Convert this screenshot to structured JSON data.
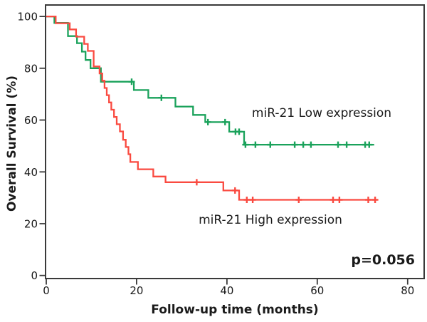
{
  "chart_data": {
    "type": "line",
    "subtype": "kaplan_meier_step",
    "title": "",
    "xlabel": "Follow-up time (months)",
    "ylabel": "Overall Survival (%)",
    "xlim": [
      0,
      84
    ],
    "ylim": [
      0,
      100
    ],
    "xticks": [
      0,
      20,
      40,
      60,
      80
    ],
    "yticks": [
      0,
      20,
      40,
      60,
      80,
      100
    ],
    "grid": false,
    "legend_position": "inline annotations on plot",
    "p_value": "p=0.056",
    "frame_color": "#3a3a3a",
    "text_color": "#1a1a1a",
    "series": [
      {
        "key": "low",
        "name": "miR-21 Low expression",
        "color": "#1aa25b",
        "steps": [
          [
            0,
            100
          ],
          [
            1.8,
            97.5
          ],
          [
            4.8,
            92.4
          ],
          [
            6.8,
            89.7
          ],
          [
            7.9,
            86.4
          ],
          [
            8.7,
            83.2
          ],
          [
            9.8,
            80
          ],
          [
            12.1,
            74.8
          ],
          [
            19.4,
            71.6
          ],
          [
            22.6,
            68.6
          ],
          [
            28.6,
            65.2
          ],
          [
            32.5,
            62
          ],
          [
            35.2,
            59.2
          ],
          [
            40.5,
            55.5
          ],
          [
            43.8,
            50.5
          ],
          [
            72.6,
            50.5
          ]
        ],
        "censors": [
          [
            18.9,
            74.8
          ],
          [
            25.5,
            68.6
          ],
          [
            35.8,
            59.2
          ],
          [
            39.6,
            59.2
          ],
          [
            41.9,
            55.5
          ],
          [
            42.7,
            55.5
          ],
          [
            44.1,
            50.5
          ],
          [
            46.3,
            50.5
          ],
          [
            49.6,
            50.5
          ],
          [
            55,
            50.5
          ],
          [
            56.9,
            50.5
          ],
          [
            58.6,
            50.5
          ],
          [
            64.6,
            50.5
          ],
          [
            66.5,
            50.5
          ],
          [
            70.6,
            50.5
          ],
          [
            71.5,
            50.5
          ]
        ]
      },
      {
        "key": "high",
        "name": "miR-21 High expression",
        "color": "#fa4a40",
        "steps": [
          [
            0,
            100
          ],
          [
            2.1,
            97.4
          ],
          [
            5.2,
            95
          ],
          [
            6.6,
            92.2
          ],
          [
            8.4,
            89.4
          ],
          [
            9.2,
            86.7
          ],
          [
            10.5,
            80.7
          ],
          [
            11.8,
            78
          ],
          [
            12.4,
            75.2
          ],
          [
            12.9,
            72.4
          ],
          [
            13.4,
            69.6
          ],
          [
            13.9,
            66.8
          ],
          [
            14.4,
            64
          ],
          [
            15,
            61.2
          ],
          [
            15.6,
            58.4
          ],
          [
            16.3,
            55.6
          ],
          [
            17,
            52.4
          ],
          [
            17.6,
            49.6
          ],
          [
            18.2,
            46.8
          ],
          [
            18.6,
            43.8
          ],
          [
            20.3,
            41
          ],
          [
            23.7,
            38.2
          ],
          [
            26.4,
            36
          ],
          [
            39.2,
            32.8
          ],
          [
            42.7,
            29.2
          ],
          [
            73.2,
            29.2
          ]
        ],
        "censors": [
          [
            33.3,
            36
          ],
          [
            41.8,
            32.8
          ],
          [
            44.4,
            29.2
          ],
          [
            45.7,
            29.2
          ],
          [
            55.9,
            29.2
          ],
          [
            63.5,
            29.2
          ],
          [
            64.9,
            29.2
          ],
          [
            71.3,
            29.2
          ],
          [
            72.8,
            29.2
          ]
        ]
      }
    ]
  }
}
